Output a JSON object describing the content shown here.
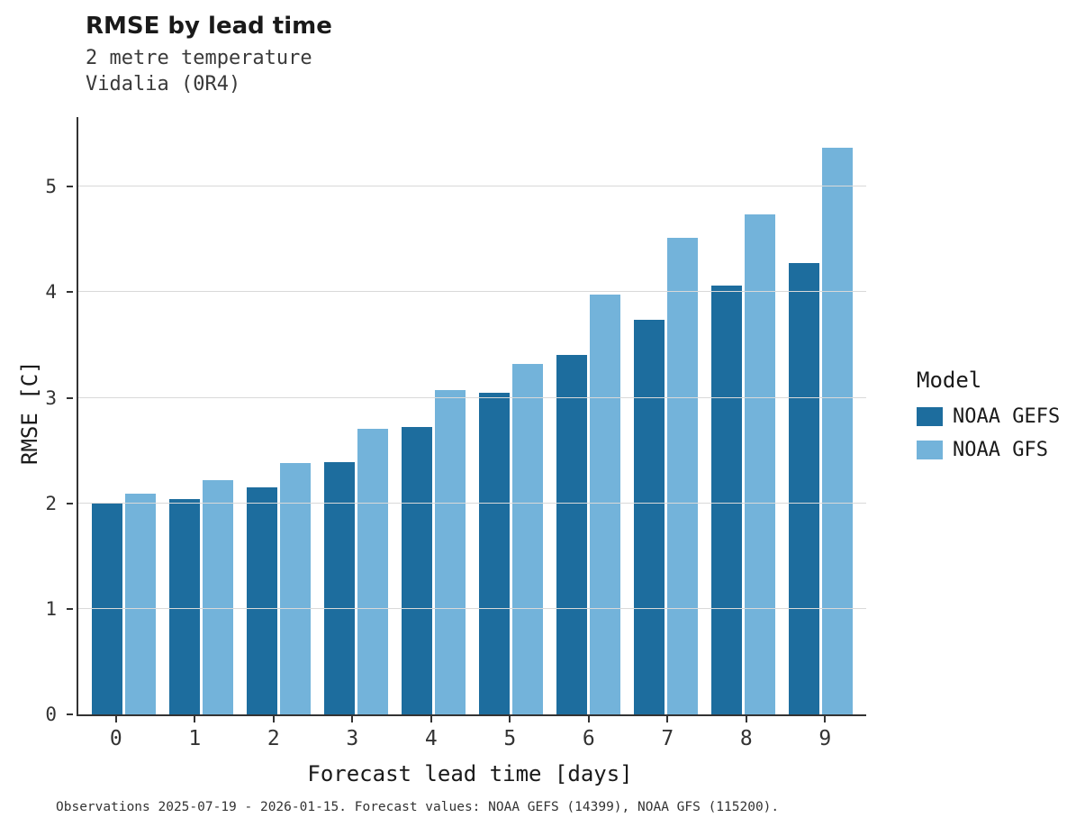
{
  "header": {
    "title": "RMSE by lead time",
    "subtitle_line1": "2 metre temperature",
    "subtitle_line2": "Vidalia (0R4)"
  },
  "legend": {
    "title": "Model"
  },
  "caption": "Observations 2025-07-19 - 2026-01-15. Forecast values: NOAA GEFS (14399), NOAA GFS (115200).",
  "chart_data": {
    "type": "bar",
    "title": "RMSE by lead time",
    "subtitle": "2 metre temperature — Vidalia (0R4)",
    "xlabel": "Forecast lead time [days]",
    "ylabel": "RMSE [C]",
    "categories": [
      "0",
      "1",
      "2",
      "3",
      "4",
      "5",
      "6",
      "7",
      "8",
      "9"
    ],
    "series": [
      {
        "name": "NOAA GEFS",
        "color": "#1d6d9e",
        "values": [
          2.0,
          2.04,
          2.15,
          2.39,
          2.72,
          3.05,
          3.41,
          3.74,
          4.06,
          4.28
        ]
      },
      {
        "name": "NOAA GFS",
        "color": "#73b3da",
        "values": [
          2.09,
          2.22,
          2.38,
          2.71,
          3.07,
          3.32,
          3.98,
          4.52,
          4.74,
          5.37
        ]
      }
    ],
    "ylim": [
      0,
      5.66
    ],
    "yticks": [
      0,
      1,
      2,
      3,
      4,
      5
    ],
    "grid": "horizontal",
    "legend_position": "right"
  }
}
